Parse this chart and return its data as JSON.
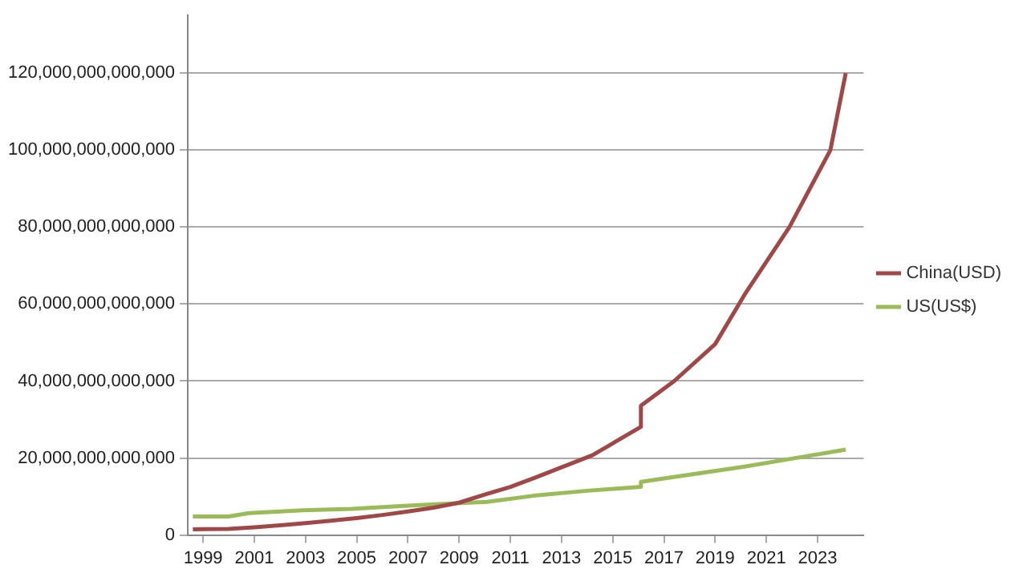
{
  "chart_data": {
    "type": "line",
    "legend": "right",
    "grid": "y",
    "marker": "none",
    "line_style": "solid",
    "xlim": [
      1998.4,
      2024.8
    ],
    "xticks": [
      1999,
      2001,
      2003,
      2005,
      2007,
      2009,
      2011,
      2013,
      2015,
      2017,
      2019,
      2021,
      2023
    ],
    "ylim": [
      0,
      135000000000000.0
    ],
    "yticks": [
      {
        "value": 0,
        "label": "0"
      },
      {
        "value": 20000000000000.0,
        "label": "20,000,000,000,000"
      },
      {
        "value": 40000000000000.0,
        "label": "40,000,000,000,000"
      },
      {
        "value": 60000000000000.0,
        "label": "60,000,000,000,000"
      },
      {
        "value": 80000000000000.0,
        "label": "80,000,000,000,000"
      },
      {
        "value": 100000000000000.0,
        "label": "100,000,000,000,000"
      },
      {
        "value": 120000000000000.0,
        "label": "120,000,000,000,000"
      }
    ],
    "series": [
      {
        "name": "China(USD)",
        "color": "#a04848",
        "x": [
          1998.6,
          2000,
          2001,
          2002,
          2003,
          2004,
          2005,
          2006,
          2007,
          2008,
          2009,
          2010,
          2011,
          2012,
          2014.2,
          2016.1,
          2016.1,
          2017.4,
          2019,
          2020.2,
          2021.9,
          2023.5,
          2024.1
        ],
        "values": [
          1500000000000.0,
          1600000000000.0,
          2000000000000.0,
          2500000000000.0,
          3100000000000.0,
          3700000000000.0,
          4400000000000.0,
          5200000000000.0,
          6100000000000.0,
          7100000000000.0,
          8400000000000.0,
          10500000000000.0,
          12500000000000.0,
          15000000000000.0,
          20700000000000.0,
          28100000000000.0,
          33600000000000.0,
          40000000000000.0,
          49600000000000.0,
          63000000000000.0,
          80000000000000.0,
          100000000000000.0,
          120000000000000.0
        ]
      },
      {
        "name": "US(US$)",
        "color": "#9bbb59",
        "x": [
          1998.6,
          2000,
          2000.8,
          2002.9,
          2004.8,
          2006.7,
          2008.7,
          2010.1,
          2011.9,
          2014,
          2016.1,
          2016.1,
          2020.1,
          2022.5,
          2024.1
        ],
        "values": [
          4800000000000.0,
          4800000000000.0,
          5700000000000.0,
          6400000000000.0,
          6800000000000.0,
          7500000000000.0,
          8200000000000.0,
          8600000000000.0,
          10200000000000.0,
          11500000000000.0,
          12500000000000.0,
          13800000000000.0,
          17700000000000.0,
          20400000000000.0,
          22200000000000.0
        ]
      }
    ]
  }
}
